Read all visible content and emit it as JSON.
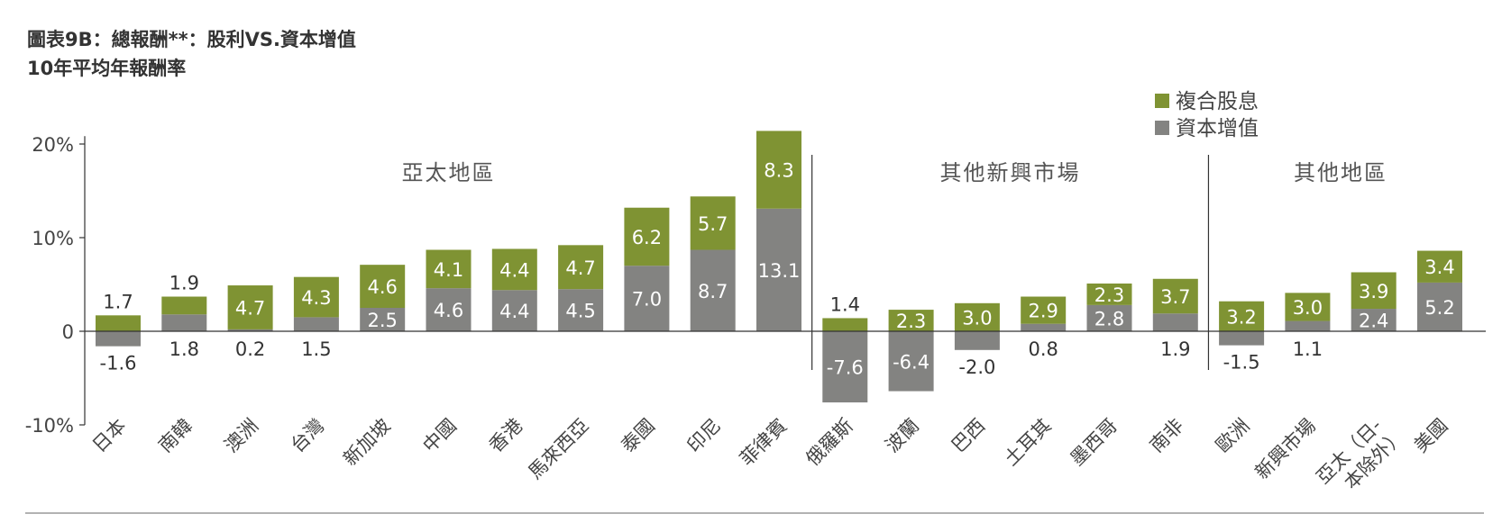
{
  "title": "圖表9B：總報酬**：股利VS.資本增值",
  "subtitle": "10年平均年報酬率",
  "colors": {
    "dividend": "#7f9333",
    "capital": "#838381",
    "axis": "#333333"
  },
  "chart_data": {
    "type": "bar",
    "stacked": true,
    "title": "圖表9B：總報酬**：股利VS.資本增值",
    "subtitle": "10年平均年報酬率",
    "ylim": [
      -10,
      22
    ],
    "yticks": [
      {
        "value": 20,
        "label": "20%"
      },
      {
        "value": 10,
        "label": "10%"
      },
      {
        "value": 0,
        "label": "0"
      },
      {
        "value": -10,
        "label": "-10%"
      }
    ],
    "legend": {
      "position": "top-right",
      "entries": [
        "複合股息",
        "資本增值"
      ]
    },
    "groups": [
      {
        "label": "亞太地區",
        "start": 0,
        "end": 10
      },
      {
        "label": "其他新興市場",
        "start": 11,
        "end": 16
      },
      {
        "label": "其他地區",
        "start": 17,
        "end": 20
      }
    ],
    "categories": [
      "日本",
      "南韓",
      "澳洲",
      "台灣",
      "新加坡",
      "中國",
      "香港",
      "馬來西亞",
      "泰國",
      "印尼",
      "菲律賓",
      "俄羅斯",
      "波蘭",
      "巴西",
      "土耳其",
      "墨西哥",
      "南非",
      "歐洲",
      "新興市場",
      "亞太（日-本除外）",
      "美國"
    ],
    "series": [
      {
        "name": "資本增值",
        "values": [
          -1.6,
          1.8,
          0.2,
          1.5,
          2.5,
          4.6,
          4.4,
          4.5,
          7.0,
          8.7,
          13.1,
          -7.6,
          -6.4,
          -2.0,
          0.8,
          2.8,
          1.9,
          -1.5,
          1.1,
          2.4,
          5.2
        ]
      },
      {
        "name": "複合股息",
        "values": [
          1.7,
          1.9,
          4.7,
          4.3,
          4.6,
          4.1,
          4.4,
          4.7,
          6.2,
          5.7,
          8.3,
          1.4,
          2.3,
          3.0,
          2.9,
          2.3,
          3.7,
          3.2,
          3.0,
          3.9,
          3.4
        ]
      }
    ],
    "capital_labels": [
      "-1.6",
      "1.8",
      "0.2",
      "1.5",
      "2.5",
      "4.6",
      "4.4",
      "4.5",
      "7.0",
      "8.7",
      "13.1",
      "-7.6",
      "-6.4",
      "-2.0",
      "0.8",
      "2.8",
      "1.9",
      "-1.5",
      "1.1",
      "2.4",
      "5.2"
    ],
    "dividend_labels": [
      "1.7",
      "1.9",
      "4.7",
      "4.3",
      "4.6",
      "4.1",
      "4.4",
      "4.7",
      "6.2",
      "5.7",
      "8.3",
      "1.4",
      "2.3",
      "3.0",
      "2.9",
      "2.3",
      "3.7",
      "3.2",
      "3.0",
      "3.9",
      "3.4"
    ]
  }
}
